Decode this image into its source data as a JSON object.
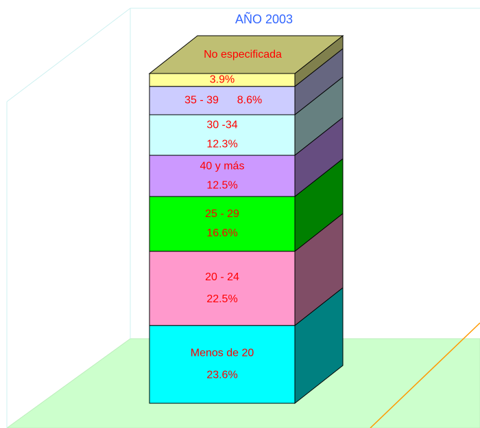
{
  "chart_data": {
    "type": "stacked_bar_3d",
    "subtitle": "AÑO 2003",
    "series": [
      {
        "name": "Menos de 20",
        "color": "#00ffff",
        "values": [
          23.6
        ],
        "value_labels": [
          "23.6%"
        ]
      },
      {
        "name": "20 - 24",
        "color": "#ff99cc",
        "values": [
          22.5
        ],
        "value_labels": [
          "22.5%"
        ]
      },
      {
        "name": "25 - 29",
        "color": "#00ff00",
        "values": [
          16.6
        ],
        "value_labels": [
          "16.6%"
        ]
      },
      {
        "name": "40 y más",
        "color": "#cc99ff",
        "values": [
          12.5
        ],
        "value_labels": [
          "12.5%"
        ]
      },
      {
        "name": "30 -34",
        "color": "#ccffff",
        "values": [
          12.3
        ],
        "value_labels": [
          "12.3%"
        ]
      },
      {
        "name": "35 - 39",
        "color": "#ccccff",
        "values": [
          8.6
        ],
        "value_labels": [
          "8.6%"
        ]
      },
      {
        "name": "No especificada",
        "color": "#ffff99",
        "values": [
          3.9
        ],
        "value_labels": [
          "3.9%"
        ]
      }
    ],
    "ylim": [
      0,
      100
    ]
  }
}
